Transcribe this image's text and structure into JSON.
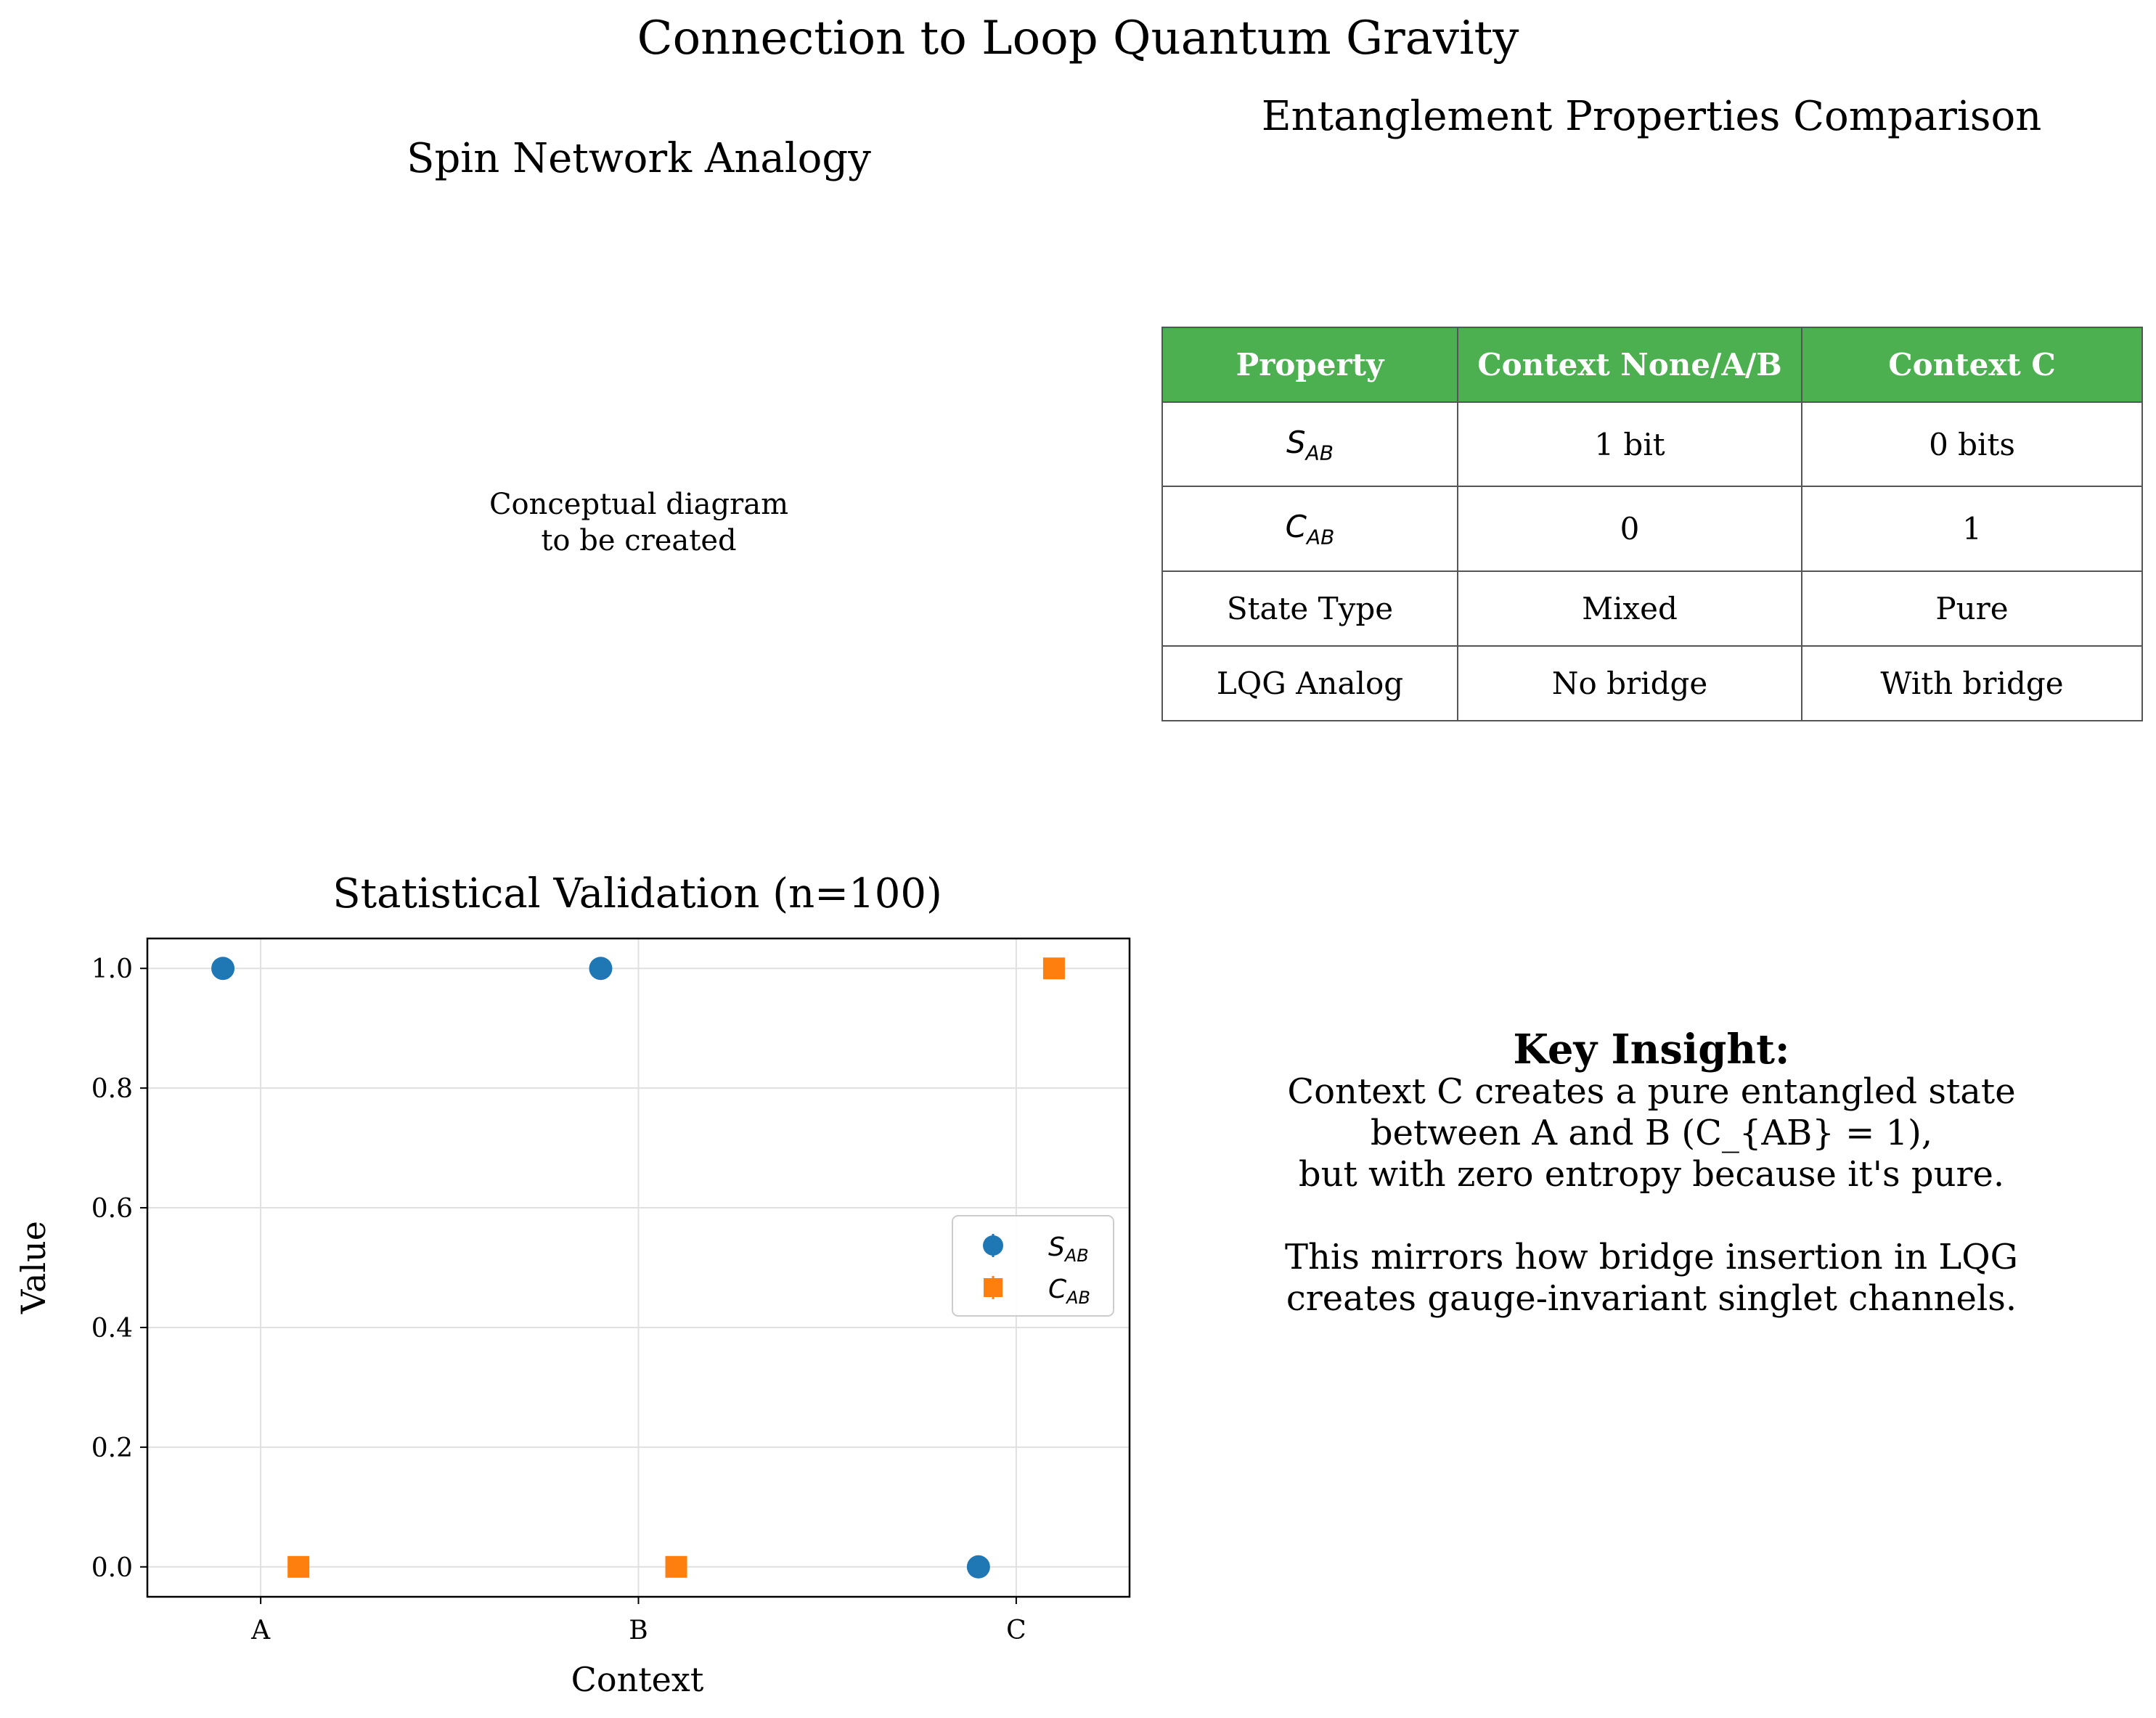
{
  "figure": {
    "title": "Connection to Loop Quantum Gravity"
  },
  "spin_network": {
    "title": "Spin Network Analogy",
    "placeholder_lines": [
      "Conceptual diagram",
      "to be created"
    ]
  },
  "table": {
    "title": "Entanglement Properties Comparison",
    "header_color": "#4caf50",
    "headers": [
      "Property",
      "Context None/A/B",
      "Context C"
    ],
    "rows": [
      {
        "property_symbol": "S",
        "property_sub": "AB",
        "none_ab": "1 bit",
        "c": "0 bits"
      },
      {
        "property_symbol": "C",
        "property_sub": "AB",
        "none_ab": "0",
        "c": "1"
      },
      {
        "property": "State Type",
        "none_ab": "Mixed",
        "c": "Pure"
      },
      {
        "property": "LQG Analog",
        "none_ab": "No bridge",
        "c": "With bridge"
      }
    ]
  },
  "insight": {
    "title": "Key Insight:",
    "lines": [
      "Context C creates a pure entangled state",
      "between A and B (C_{AB} = 1),",
      "but with zero entropy because it's pure.",
      "",
      "This mirrors how bridge insertion in LQG",
      "creates gauge-invariant singlet channels."
    ]
  },
  "chart_data": {
    "type": "scatter",
    "title": "Statistical Validation (n=100)",
    "xlabel": "Context",
    "ylabel": "Value",
    "categories": [
      "A",
      "B",
      "C"
    ],
    "ylim": [
      -0.05,
      1.05
    ],
    "yticks": [
      0.0,
      0.2,
      0.4,
      0.6,
      0.8,
      1.0
    ],
    "ytick_labels": [
      "0.0",
      "0.2",
      "0.4",
      "0.6",
      "0.8",
      "1.0"
    ],
    "grid": true,
    "legend_placement": "center-right",
    "series": [
      {
        "name_symbol": "S",
        "name_sub": "AB",
        "marker": "circle",
        "color": "#1f77b4",
        "offset": -0.1,
        "values": [
          1.0,
          1.0,
          0.0
        ]
      },
      {
        "name_symbol": "C",
        "name_sub": "AB",
        "marker": "square",
        "color": "#ff7f0e",
        "offset": 0.1,
        "values": [
          0.0,
          0.0,
          1.0
        ]
      }
    ]
  }
}
